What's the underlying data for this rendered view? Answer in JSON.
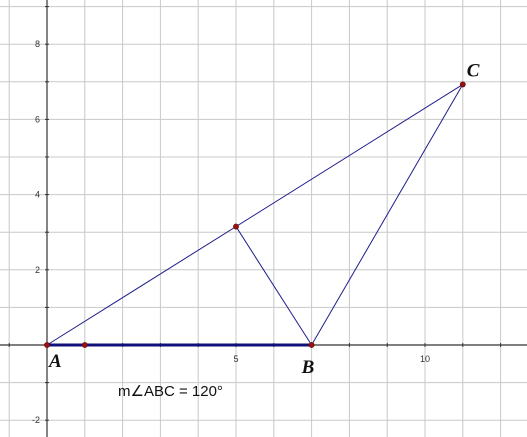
{
  "points": [
    {
      "name": "A",
      "label": "A",
      "x": 0,
      "y": 0
    },
    {
      "name": "D",
      "label": "",
      "x": 1,
      "y": 0
    },
    {
      "name": "B",
      "label": "B",
      "x": 7,
      "y": 0
    },
    {
      "name": "C",
      "label": "C",
      "x": 11,
      "y": 6.93
    },
    {
      "name": "E",
      "label": "",
      "x": 5,
      "y": 3.15
    }
  ],
  "segments": [
    {
      "from": "A",
      "to": "B",
      "style": "thick"
    },
    {
      "from": "A",
      "to": "C",
      "style": "thin"
    },
    {
      "from": "B",
      "to": "C",
      "style": "thin"
    },
    {
      "from": "E",
      "to": "B",
      "style": "thin"
    }
  ],
  "axes": {
    "x_ticks": [
      {
        "value": 5,
        "label": "5"
      },
      {
        "value": 10,
        "label": "10"
      }
    ],
    "y_ticks": [
      {
        "value": -2,
        "label": "-2"
      },
      {
        "value": 2,
        "label": "2"
      },
      {
        "value": 4,
        "label": "4"
      },
      {
        "value": 6,
        "label": "6"
      },
      {
        "value": 8,
        "label": "8"
      }
    ],
    "xlim": [
      -1.25,
      12.6
    ],
    "ylim": [
      -2.4,
      9.2
    ]
  },
  "measurement": {
    "text": "m∠ABC = 120°"
  },
  "colors": {
    "grid": "#c8c8c8",
    "axis": "#333333",
    "segment": "#1f1f8a",
    "segment_thick": "#10107a",
    "point": "#a01010"
  }
}
